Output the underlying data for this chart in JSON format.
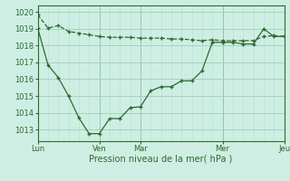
{
  "line1_x": [
    0,
    1,
    2,
    3,
    4,
    5,
    6,
    7,
    8,
    9,
    10,
    11,
    12,
    13,
    14,
    15,
    16,
    17,
    18,
    19,
    20,
    21,
    22,
    23,
    24
  ],
  "line1_y": [
    1019.85,
    1019.05,
    1019.2,
    1018.85,
    1018.75,
    1018.65,
    1018.55,
    1018.5,
    1018.5,
    1018.5,
    1018.45,
    1018.45,
    1018.45,
    1018.4,
    1018.4,
    1018.35,
    1018.3,
    1018.35,
    1018.3,
    1018.3,
    1018.3,
    1018.3,
    1018.55,
    1018.6,
    1018.55
  ],
  "line2_x": [
    0,
    1,
    2,
    3,
    4,
    5,
    6,
    7,
    8,
    9,
    10,
    11,
    12,
    13,
    14,
    15,
    16,
    17,
    18,
    19,
    20,
    21,
    22,
    23,
    24
  ],
  "line2_y": [
    1019.05,
    1016.85,
    1016.1,
    1015.0,
    1013.7,
    1012.75,
    1012.75,
    1013.65,
    1013.65,
    1014.3,
    1014.35,
    1015.3,
    1015.55,
    1015.55,
    1015.9,
    1015.9,
    1016.5,
    1018.2,
    1018.2,
    1018.2,
    1018.1,
    1018.1,
    1019.0,
    1018.55,
    1018.55
  ],
  "tick_positions": [
    0,
    6,
    10,
    18,
    24
  ],
  "tick_labels": [
    "Lun",
    "Ven",
    "Mar",
    "Mer",
    "Jeu"
  ],
  "yticks": [
    1013,
    1014,
    1015,
    1016,
    1017,
    1018,
    1019,
    1020
  ],
  "ylim": [
    1012.3,
    1020.4
  ],
  "xlim": [
    0,
    24
  ],
  "line_color": "#2d6a2d",
  "bg_color": "#ceeee4",
  "grid_major_color": "#9ecfb8",
  "grid_minor_color": "#b8dece",
  "xlabel": "Pression niveau de la mer( hPa )",
  "xlabel_color": "#2d6a2d",
  "tick_color": "#2d6a2d"
}
